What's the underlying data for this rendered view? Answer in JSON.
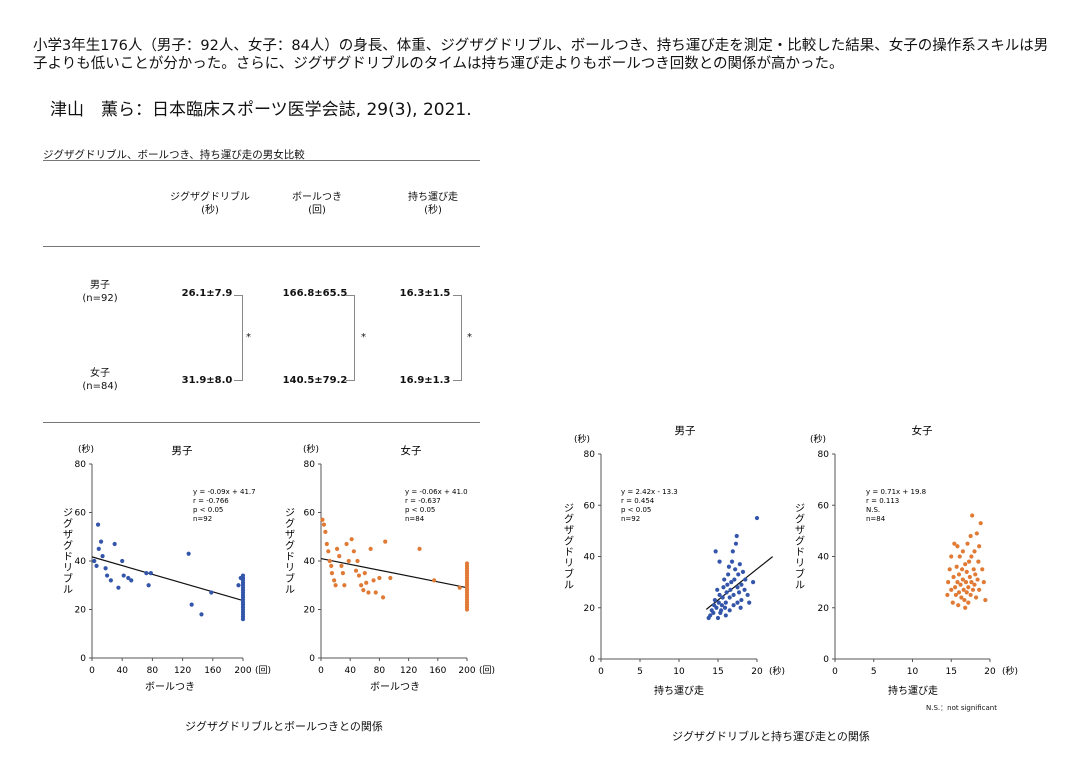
{
  "summary": "小学3年生176人（男子：92人、女子：84人）の身長、体重、ジグザグドリブル、ボールつき、持ち運び走を測定・比較した結果、女子の操作系スキルは男子よりも低いことが分かった。さらに、ジグザグドリブルのタイムは持ち運び走よりもボールつき回数との関係が高かった。",
  "citation": "津山　薫ら：日本臨床スポーツ医学会誌, 29(3), 2021.",
  "table": {
    "title": "ジグザグドリブル、ボールつき、持ち運び走の男女比較",
    "columns": [
      {
        "name": "ジグザグドリブル",
        "unit": "(秒)"
      },
      {
        "name": "ボールつき",
        "unit": "(回)"
      },
      {
        "name": "持ち運び走",
        "unit": "(秒)"
      }
    ],
    "rows": [
      {
        "label": "男子",
        "n": "(n=92)",
        "values": [
          "26.1±7.9",
          "166.8±65.5",
          "16.3±1.5"
        ]
      },
      {
        "label": "女子",
        "n": "(n=84)",
        "values": [
          "31.9±8.0",
          "140.5±79.2",
          "16.9±1.3"
        ]
      }
    ],
    "significance": [
      "*",
      "*",
      "*"
    ]
  },
  "caption_left": "ジグザグドリブルとボールつきとの関係",
  "caption_right": "ジグザグドリブルと持ち運び走との関係",
  "ns_note": "N.S.：not significant",
  "chart_data": [
    {
      "type": "scatter",
      "title": "男子",
      "color": "#3355aa",
      "xlabel": "ボールつき",
      "xunit": "(回)",
      "ylabel": "ジグザグドリブル",
      "yunit": "(秒)",
      "xlim": [
        0,
        200
      ],
      "ylim": [
        0,
        80
      ],
      "xticks": [
        0,
        40,
        80,
        120,
        160,
        200
      ],
      "yticks": [
        0,
        20,
        40,
        60,
        80
      ],
      "annotation": [
        "y = -0.09x + 41.7",
        "r = -0.766",
        "p < 0.05",
        "n=92"
      ],
      "regression": {
        "slope": -0.09,
        "intercept": 41.7,
        "x": [
          0,
          200
        ]
      },
      "points": [
        [
          3,
          40
        ],
        [
          6,
          38
        ],
        [
          8,
          55
        ],
        [
          9,
          45
        ],
        [
          12,
          48
        ],
        [
          14,
          42
        ],
        [
          18,
          37
        ],
        [
          20,
          34
        ],
        [
          25,
          32
        ],
        [
          30,
          47
        ],
        [
          35,
          29
        ],
        [
          40,
          40
        ],
        [
          42,
          34
        ],
        [
          48,
          33
        ],
        [
          52,
          32
        ],
        [
          72,
          35
        ],
        [
          75,
          30
        ],
        [
          78,
          35
        ],
        [
          128,
          43
        ],
        [
          132,
          22
        ],
        [
          145,
          18
        ],
        [
          158,
          27
        ],
        [
          194,
          30
        ],
        [
          197,
          33
        ],
        [
          200,
          16
        ],
        [
          200,
          17
        ],
        [
          200,
          18
        ],
        [
          200,
          19
        ],
        [
          200,
          20
        ],
        [
          200,
          21
        ],
        [
          200,
          22
        ],
        [
          200,
          23
        ],
        [
          200,
          24
        ],
        [
          200,
          25
        ],
        [
          200,
          26
        ],
        [
          200,
          27
        ],
        [
          200,
          28
        ],
        [
          200,
          29
        ],
        [
          200,
          30
        ],
        [
          200,
          31
        ],
        [
          200,
          32
        ],
        [
          200,
          33
        ],
        [
          200,
          34
        ]
      ]
    },
    {
      "type": "scatter",
      "title": "女子",
      "color": "#e07a35",
      "xlabel": "ボールつき",
      "xunit": "(回)",
      "ylabel": "ジグザグドリブル",
      "yunit": "(秒)",
      "xlim": [
        0,
        200
      ],
      "ylim": [
        0,
        80
      ],
      "xticks": [
        0,
        40,
        80,
        120,
        160,
        200
      ],
      "yticks": [
        0,
        20,
        40,
        60,
        80
      ],
      "annotation": [
        "y = -0.06x + 41.0",
        "r = -0.637",
        "p < 0.05",
        "n=84"
      ],
      "regression": {
        "slope": -0.06,
        "intercept": 41.0,
        "x": [
          0,
          200
        ]
      },
      "points": [
        [
          2,
          57
        ],
        [
          4,
          55
        ],
        [
          6,
          52
        ],
        [
          8,
          47
        ],
        [
          10,
          44
        ],
        [
          12,
          40
        ],
        [
          14,
          38
        ],
        [
          15,
          35
        ],
        [
          18,
          32
        ],
        [
          20,
          30
        ],
        [
          22,
          45
        ],
        [
          25,
          42
        ],
        [
          28,
          38
        ],
        [
          30,
          35
        ],
        [
          32,
          30
        ],
        [
          35,
          47
        ],
        [
          38,
          40
        ],
        [
          42,
          49
        ],
        [
          45,
          44
        ],
        [
          48,
          36
        ],
        [
          50,
          40
        ],
        [
          52,
          34
        ],
        [
          55,
          30
        ],
        [
          58,
          28
        ],
        [
          60,
          35
        ],
        [
          62,
          31
        ],
        [
          65,
          27
        ],
        [
          68,
          45
        ],
        [
          72,
          32
        ],
        [
          75,
          27
        ],
        [
          80,
          33
        ],
        [
          85,
          25
        ],
        [
          88,
          48
        ],
        [
          95,
          33
        ],
        [
          135,
          45
        ],
        [
          155,
          32
        ],
        [
          190,
          29
        ],
        [
          200,
          20
        ],
        [
          200,
          21
        ],
        [
          200,
          22
        ],
        [
          200,
          23
        ],
        [
          200,
          24
        ],
        [
          200,
          25
        ],
        [
          200,
          26
        ],
        [
          200,
          27
        ],
        [
          200,
          28
        ],
        [
          200,
          29
        ],
        [
          200,
          30
        ],
        [
          200,
          31
        ],
        [
          200,
          32
        ],
        [
          200,
          33
        ],
        [
          200,
          34
        ],
        [
          200,
          35
        ],
        [
          200,
          36
        ],
        [
          200,
          37
        ],
        [
          200,
          38
        ],
        [
          200,
          39
        ]
      ]
    },
    {
      "type": "scatter",
      "title": "男子",
      "color": "#3355aa",
      "xlabel": "持ち運び走",
      "xunit": "(秒)",
      "ylabel": "ジグザグドリブル",
      "yunit": "(秒)",
      "xlim": [
        0,
        20
      ],
      "ylim": [
        0,
        80
      ],
      "xticks": [
        0,
        5,
        10,
        15,
        20
      ],
      "yticks": [
        0,
        20,
        40,
        60,
        80
      ],
      "annotation": [
        "y = 2.42x - 13.3",
        "r = 0.454",
        "p < 0.05",
        "n=92"
      ],
      "regression": {
        "slope": 2.42,
        "intercept": -13.3,
        "x": [
          13.5,
          22
        ]
      },
      "points": [
        [
          13.8,
          16
        ],
        [
          14.0,
          17
        ],
        [
          14.2,
          19
        ],
        [
          14.4,
          18
        ],
        [
          14.5,
          21
        ],
        [
          14.6,
          23
        ],
        [
          14.8,
          20
        ],
        [
          14.9,
          27
        ],
        [
          15.0,
          16
        ],
        [
          15.1,
          22
        ],
        [
          15.2,
          25
        ],
        [
          15.3,
          18
        ],
        [
          15.4,
          19
        ],
        [
          15.5,
          21
        ],
        [
          15.6,
          24
        ],
        [
          15.7,
          28
        ],
        [
          15.8,
          31
        ],
        [
          15.9,
          20
        ],
        [
          16.0,
          17
        ],
        [
          16.0,
          22
        ],
        [
          16.1,
          26
        ],
        [
          16.2,
          29
        ],
        [
          16.3,
          33
        ],
        [
          16.4,
          36
        ],
        [
          16.5,
          19
        ],
        [
          16.5,
          24
        ],
        [
          16.6,
          27
        ],
        [
          16.7,
          30
        ],
        [
          16.8,
          38
        ],
        [
          16.9,
          42
        ],
        [
          17.0,
          21
        ],
        [
          17.0,
          25
        ],
        [
          17.1,
          31
        ],
        [
          17.2,
          35
        ],
        [
          17.3,
          45
        ],
        [
          17.4,
          48
        ],
        [
          17.5,
          22
        ],
        [
          17.5,
          28
        ],
        [
          17.6,
          33
        ],
        [
          17.7,
          26
        ],
        [
          17.8,
          37
        ],
        [
          17.9,
          20
        ],
        [
          18.0,
          23
        ],
        [
          18.0,
          29
        ],
        [
          18.2,
          34
        ],
        [
          18.4,
          27
        ],
        [
          18.5,
          31
        ],
        [
          18.8,
          25
        ],
        [
          19.0,
          22
        ],
        [
          19.5,
          30
        ],
        [
          20.0,
          55
        ],
        [
          14.7,
          42
        ],
        [
          15.2,
          38
        ]
      ]
    },
    {
      "type": "scatter",
      "title": "女子",
      "color": "#e07a35",
      "xlabel": "持ち運び走",
      "xunit": "(秒)",
      "ylabel": "ジグザグドリブル",
      "yunit": "(秒)",
      "xlim": [
        0,
        20
      ],
      "ylim": [
        0,
        80
      ],
      "xticks": [
        0,
        5,
        10,
        15,
        20
      ],
      "yticks": [
        0,
        20,
        40,
        60,
        80
      ],
      "annotation": [
        "y = 0.71x + 19.8",
        "r = 0.113",
        "N.S.",
        "n=84"
      ],
      "regression": null,
      "points": [
        [
          14.5,
          25
        ],
        [
          14.6,
          30
        ],
        [
          14.8,
          35
        ],
        [
          15.0,
          27
        ],
        [
          15.0,
          40
        ],
        [
          15.2,
          22
        ],
        [
          15.3,
          32
        ],
        [
          15.4,
          45
        ],
        [
          15.5,
          28
        ],
        [
          15.6,
          25
        ],
        [
          15.7,
          36
        ],
        [
          15.8,
          30
        ],
        [
          15.9,
          21
        ],
        [
          16.0,
          26
        ],
        [
          16.0,
          33
        ],
        [
          16.1,
          40
        ],
        [
          16.2,
          29
        ],
        [
          16.3,
          24
        ],
        [
          16.4,
          35
        ],
        [
          16.5,
          31
        ],
        [
          16.5,
          42
        ],
        [
          16.6,
          27
        ],
        [
          16.7,
          23
        ],
        [
          16.8,
          37
        ],
        [
          16.9,
          30
        ],
        [
          17.0,
          26
        ],
        [
          17.0,
          34
        ],
        [
          17.1,
          45
        ],
        [
          17.2,
          28
        ],
        [
          17.3,
          38
        ],
        [
          17.4,
          32
        ],
        [
          17.5,
          25
        ],
        [
          17.5,
          48
        ],
        [
          17.6,
          30
        ],
        [
          17.7,
          56
        ],
        [
          17.8,
          27
        ],
        [
          17.9,
          35
        ],
        [
          18.0,
          42
        ],
        [
          18.0,
          29
        ],
        [
          18.1,
          33
        ],
        [
          18.2,
          24
        ],
        [
          18.3,
          49
        ],
        [
          18.4,
          31
        ],
        [
          18.5,
          38
        ],
        [
          18.6,
          27
        ],
        [
          18.8,
          53
        ],
        [
          19.0,
          35
        ],
        [
          19.2,
          30
        ],
        [
          19.4,
          23
        ],
        [
          17.2,
          22
        ],
        [
          16.8,
          20
        ],
        [
          15.8,
          44
        ],
        [
          17.6,
          40
        ],
        [
          18.6,
          44
        ]
      ]
    }
  ]
}
